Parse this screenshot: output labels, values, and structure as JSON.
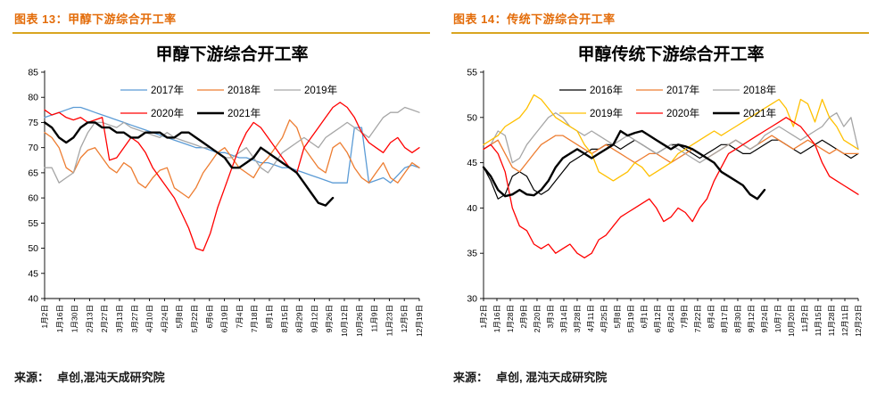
{
  "styles": {
    "header_color": "#E36C09",
    "rule_color": "#D9A521",
    "title_color": "#000000",
    "axis_color": "#000000"
  },
  "panels": [
    {
      "header": "图表 13：甲醇下游综合开工率",
      "source_prefix": "来源：",
      "source_text": "卓创,混沌天成研究院"
    },
    {
      "header": "图表 14：传统下游综合开工率",
      "source_prefix": "来源：",
      "source_text": "卓创, 混沌天成研究院"
    }
  ],
  "chart_data": [
    {
      "type": "line",
      "title": "甲醇下游综合开工率",
      "ylim": [
        40,
        85
      ],
      "yticks": [
        40,
        45,
        50,
        55,
        60,
        65,
        70,
        75,
        80,
        85
      ],
      "grid": false,
      "legend_position": "top-center",
      "x_labels": [
        "1月2日",
        "1月16日",
        "1月30日",
        "2月13日",
        "2月27日",
        "3月13日",
        "3月27日",
        "4月10日",
        "4月24日",
        "5月8日",
        "5月22日",
        "6月6日",
        "6月19日",
        "7月4日",
        "7月18日",
        "8月1日",
        "8月15日",
        "8月29日",
        "9月12日",
        "9月26日",
        "10月12日",
        "10月26日",
        "11月9日",
        "11月23日",
        "12月5日",
        "12月19日"
      ],
      "series": [
        {
          "name": "2017年",
          "color": "#5B9BD5",
          "width": 1.3,
          "values": [
            76,
            76.5,
            77,
            77.5,
            78,
            78,
            77.5,
            77,
            76.5,
            76,
            75.5,
            75,
            74.5,
            74,
            73.5,
            73,
            72.5,
            72,
            71.5,
            71,
            70.5,
            70,
            70,
            69.5,
            69,
            69,
            68.5,
            68,
            68,
            67.5,
            67,
            67,
            66.5,
            66,
            66,
            65.5,
            65,
            64.5,
            64,
            63.5,
            63,
            63,
            63,
            74,
            74,
            63,
            63.5,
            64,
            63,
            64.5,
            66,
            66.5,
            66
          ]
        },
        {
          "name": "2018年",
          "color": "#ED7D31",
          "width": 1.3,
          "values": [
            73,
            72,
            70,
            66,
            65,
            68,
            69.5,
            70,
            68,
            66,
            65,
            67,
            66,
            63,
            62,
            64,
            65.5,
            66,
            62,
            61,
            60,
            62,
            65,
            67,
            69,
            70,
            68,
            66,
            65,
            64,
            66.5,
            68,
            70,
            72,
            75.5,
            74,
            70,
            68,
            66,
            65,
            70,
            71,
            69,
            66,
            64,
            63,
            65,
            67,
            64,
            63,
            65,
            67,
            66
          ]
        },
        {
          "name": "2019年",
          "color": "#A6A6A6",
          "width": 1.3,
          "values": [
            66,
            66,
            63,
            64,
            65,
            70,
            73,
            75,
            75,
            74.5,
            74,
            75,
            74,
            73.5,
            73,
            72.5,
            72,
            73,
            72,
            71.5,
            71,
            70.5,
            70,
            70,
            69,
            68,
            68,
            69,
            70,
            68,
            66,
            65,
            67,
            69,
            70,
            71,
            72,
            71,
            70,
            72,
            73,
            74,
            75,
            74,
            73,
            72,
            74,
            76,
            77,
            77,
            78,
            77.5,
            77
          ]
        },
        {
          "name": "2020年",
          "color": "#FF0000",
          "width": 1.3,
          "values": [
            77.5,
            76.5,
            77,
            76,
            75.5,
            76,
            75,
            75.5,
            76,
            67.5,
            68,
            70,
            72,
            71,
            69,
            66,
            64,
            62,
            60,
            57,
            54,
            50,
            49.5,
            53,
            58,
            62,
            66,
            70,
            73,
            75,
            74,
            72,
            70,
            68,
            66,
            65,
            70,
            72,
            74,
            76,
            78,
            79,
            78,
            76,
            73,
            71,
            70,
            69,
            71,
            72,
            70,
            69,
            70
          ]
        },
        {
          "name": "2021年",
          "color": "#000000",
          "width": 2.4,
          "values": [
            75,
            74,
            72,
            71,
            72,
            74,
            75,
            75,
            74,
            74,
            73,
            73,
            72,
            72,
            73,
            73,
            73,
            72,
            72,
            73,
            73,
            72,
            71,
            70,
            69,
            68,
            66,
            66,
            67,
            68,
            70,
            69,
            68,
            67,
            66,
            65,
            63,
            61,
            59,
            58.5,
            60,
            null,
            null,
            null,
            null,
            null,
            null,
            null,
            null,
            null,
            null,
            null,
            null
          ]
        }
      ]
    },
    {
      "type": "line",
      "title": "甲醇传统下游综合开工率",
      "ylim": [
        30,
        55
      ],
      "yticks": [
        30,
        35,
        40,
        45,
        50,
        55
      ],
      "grid": false,
      "legend_position": "top-center",
      "x_labels": [
        "1月2日",
        "1月16日",
        "1月28日",
        "2月9日",
        "2月20日",
        "3月3日",
        "3月14日",
        "3月28日",
        "4月11日",
        "4月25日",
        "5月8日",
        "5月19日",
        "6月1日",
        "6月12日",
        "6月24日",
        "7月9日",
        "7月22日",
        "8月4日",
        "8月17日",
        "8月30日",
        "9月12日",
        "9月24日",
        "10月7日",
        "10月20日",
        "11月2日",
        "11月15日",
        "11月28日",
        "12月11日",
        "12月23日"
      ],
      "series": [
        {
          "name": "2016年",
          "color": "#000000",
          "width": 1.2,
          "values": [
            44.5,
            43,
            41,
            41.5,
            43.5,
            44,
            43.5,
            42,
            41.5,
            42,
            43,
            44,
            45,
            45.5,
            46,
            46.5,
            46.5,
            47,
            47,
            46.5,
            47,
            47.5,
            47,
            46.5,
            46,
            46.5,
            47,
            47,
            46.5,
            46,
            45.5,
            46,
            46.5,
            47,
            47,
            46.5,
            46,
            46,
            46.5,
            47,
            47.5,
            47.5,
            47,
            46.5,
            46,
            46.5,
            47,
            47.5,
            47,
            46.5,
            46,
            45.5,
            46
          ]
        },
        {
          "name": "2017年",
          "color": "#ED7D31",
          "width": 1.3,
          "values": [
            46.5,
            47,
            47.5,
            46,
            44.5,
            44,
            45,
            46,
            47,
            47.5,
            48,
            48,
            47.5,
            47,
            46.5,
            46,
            46.5,
            47,
            46.5,
            46,
            45.5,
            45,
            45.5,
            46,
            46,
            45.5,
            45,
            45.5,
            46,
            46.5,
            46,
            45.5,
            46,
            46.5,
            47,
            47.5,
            47,
            46.5,
            47,
            47.5,
            48,
            47.5,
            47,
            46.5,
            47,
            47.5,
            47,
            46.5,
            46,
            46.5,
            46,
            46,
            46
          ]
        },
        {
          "name": "2018年",
          "color": "#A6A6A6",
          "width": 1.3,
          "values": [
            46.5,
            47,
            48.5,
            48,
            45,
            45.5,
            47,
            48,
            49,
            50,
            50.5,
            50,
            49,
            48.5,
            48,
            48.5,
            48,
            47.5,
            47,
            47.5,
            48,
            47.5,
            47,
            46.5,
            46,
            46.5,
            47,
            46.5,
            46,
            45.5,
            45,
            45.5,
            46,
            46.5,
            47,
            47.5,
            47,
            46.5,
            47,
            48,
            48.5,
            49,
            48.5,
            48,
            47.5,
            48,
            48.5,
            49,
            50,
            50.5,
            49,
            50,
            46.5
          ]
        },
        {
          "name": "2019年",
          "color": "#FFC000",
          "width": 1.3,
          "values": [
            47,
            47.5,
            48,
            49,
            49.5,
            50,
            51,
            52.5,
            52,
            51,
            50,
            49.5,
            49,
            48.5,
            47,
            46,
            44,
            43.5,
            43,
            43.5,
            44,
            45,
            44.5,
            43.5,
            44,
            44.5,
            45,
            46,
            46.5,
            47,
            47.5,
            48,
            48.5,
            48,
            48.5,
            49,
            49.5,
            50,
            50.5,
            51,
            51.5,
            52,
            51,
            49,
            52,
            51.5,
            49.5,
            52,
            50,
            49,
            47.5,
            47,
            46.5
          ]
        },
        {
          "name": "2020年",
          "color": "#FF0000",
          "width": 1.3,
          "values": [
            46.5,
            47,
            46,
            44,
            40,
            38,
            37.5,
            36,
            35.5,
            36,
            35,
            35.5,
            36,
            35,
            34.5,
            35,
            36.5,
            37,
            38,
            39,
            39.5,
            40,
            40.5,
            41,
            40,
            38.5,
            39,
            40,
            39.5,
            38.5,
            40,
            41,
            43,
            44.5,
            46,
            46.5,
            47,
            47.5,
            48,
            48.5,
            49,
            49.5,
            50,
            49.5,
            49,
            48,
            47,
            45,
            43.5,
            43,
            42.5,
            42,
            41.5
          ]
        },
        {
          "name": "2021年",
          "color": "#000000",
          "width": 2.4,
          "values": [
            44.5,
            43.5,
            42,
            41.3,
            41.5,
            42,
            41.5,
            41.4,
            42,
            43,
            44.5,
            45.5,
            46,
            46.5,
            46,
            45.5,
            46,
            46.5,
            47,
            48.5,
            48,
            48.3,
            48.5,
            48,
            47.5,
            47,
            46.5,
            47,
            46.8,
            46.5,
            46,
            45.5,
            45,
            44,
            43.5,
            43,
            42.5,
            41.5,
            41,
            42,
            null,
            null,
            null,
            null,
            null,
            null,
            null,
            null,
            null,
            null,
            null,
            null,
            null
          ]
        }
      ]
    }
  ]
}
